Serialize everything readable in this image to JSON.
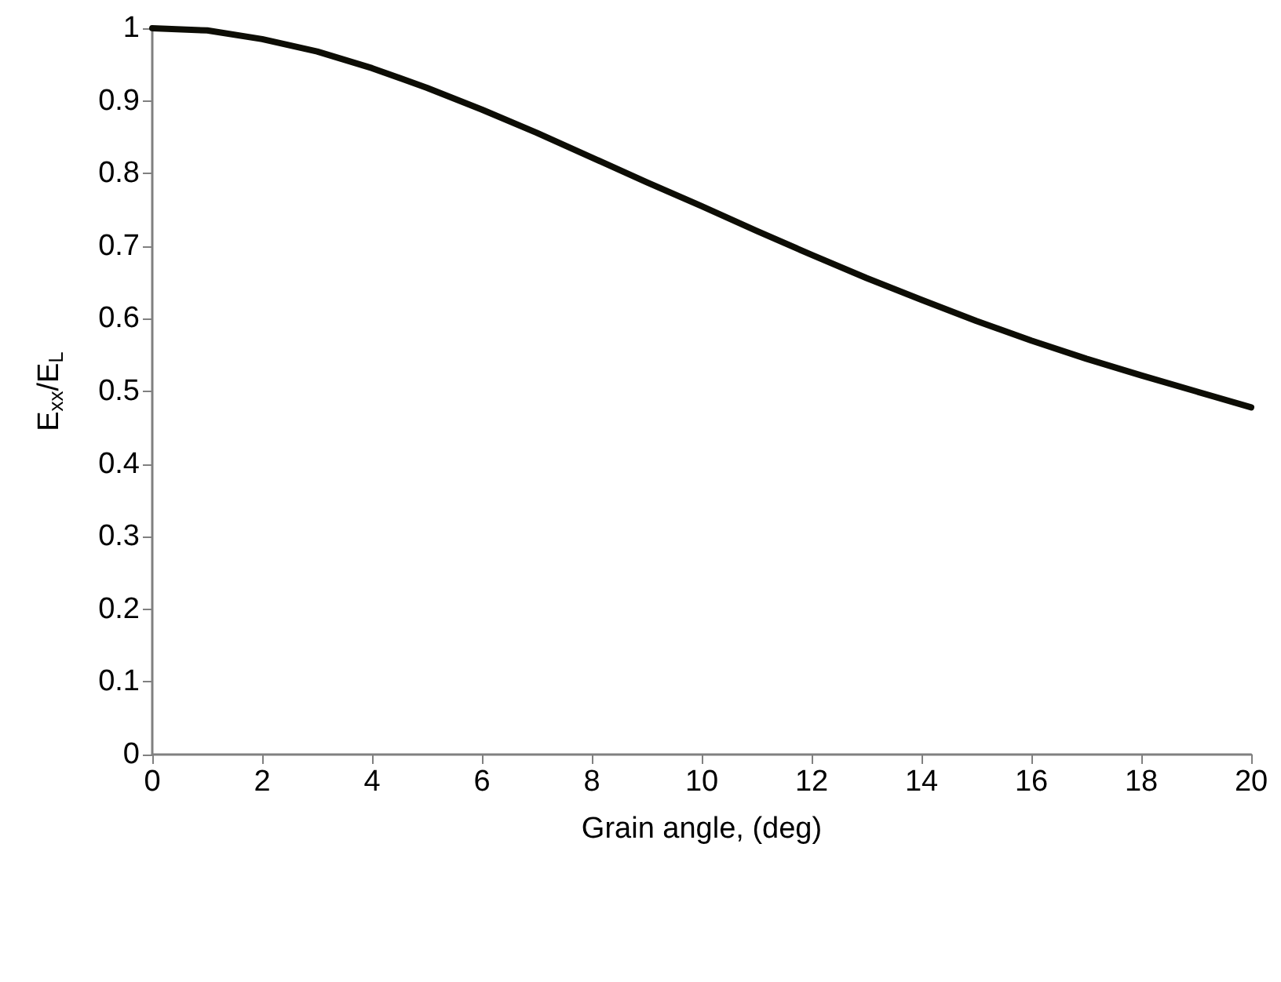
{
  "chart_data": {
    "type": "line",
    "xlabel": "Grain angle, (deg)",
    "ylabel": "E$_{xx}$/E$_{L}$",
    "x": [
      0,
      1,
      2,
      3,
      4,
      5,
      6,
      7,
      8,
      9,
      10,
      11,
      12,
      13,
      14,
      15,
      16,
      17,
      18,
      19,
      20
    ],
    "series": [
      {
        "color": "#0d0d05",
        "values": [
          1,
          0.997,
          0.985,
          0.968,
          0.945,
          0.918,
          0.888,
          0.856,
          0.822,
          0.788,
          0.755,
          0.721,
          0.688,
          0.656,
          0.626,
          0.597,
          0.57,
          0.545,
          0.522,
          0.5,
          0.478
        ]
      }
    ],
    "xlim": [
      0,
      20
    ],
    "xticks": [
      0,
      2,
      4,
      6,
      8,
      10,
      12,
      14,
      16,
      18,
      20
    ],
    "ylim": [
      0,
      1
    ],
    "yticks": [
      0,
      0.1,
      0.2,
      0.3,
      0.4,
      0.5,
      0.6,
      0.7,
      0.8,
      0.9,
      1
    ],
    "grid": false,
    "marker": "none",
    "line_style": "solid"
  }
}
